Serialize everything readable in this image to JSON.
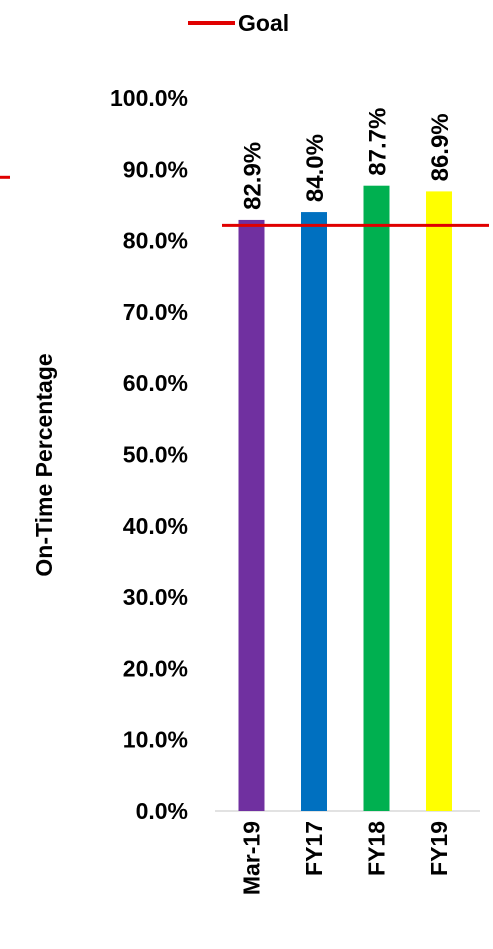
{
  "chart_data": {
    "type": "bar",
    "categories": [
      "Mar-19",
      "FY17",
      "FY18",
      "FY19"
    ],
    "values": [
      82.9,
      84.0,
      87.7,
      86.9
    ],
    "data_labels": [
      "82.9%",
      "84.0%",
      "87.7%",
      "86.9%"
    ],
    "bar_colors": [
      "#7030A0",
      "#0070C0",
      "#00B050",
      "#FFFF00"
    ],
    "goal": {
      "name": "Goal",
      "value": 82.0,
      "color": "#E00000"
    },
    "ylabel": "On-Time Percentage",
    "ylim": [
      0,
      100
    ],
    "yticks": [
      0,
      10,
      20,
      30,
      40,
      50,
      60,
      70,
      80,
      90,
      100
    ],
    "ytick_labels": [
      "0.0%",
      "10.0%",
      "20.0%",
      "30.0%",
      "40.0%",
      "50.0%",
      "60.0%",
      "70.0%",
      "80.0%",
      "90.0%",
      "100.0%"
    ],
    "legend_position": "top",
    "grid": false
  }
}
